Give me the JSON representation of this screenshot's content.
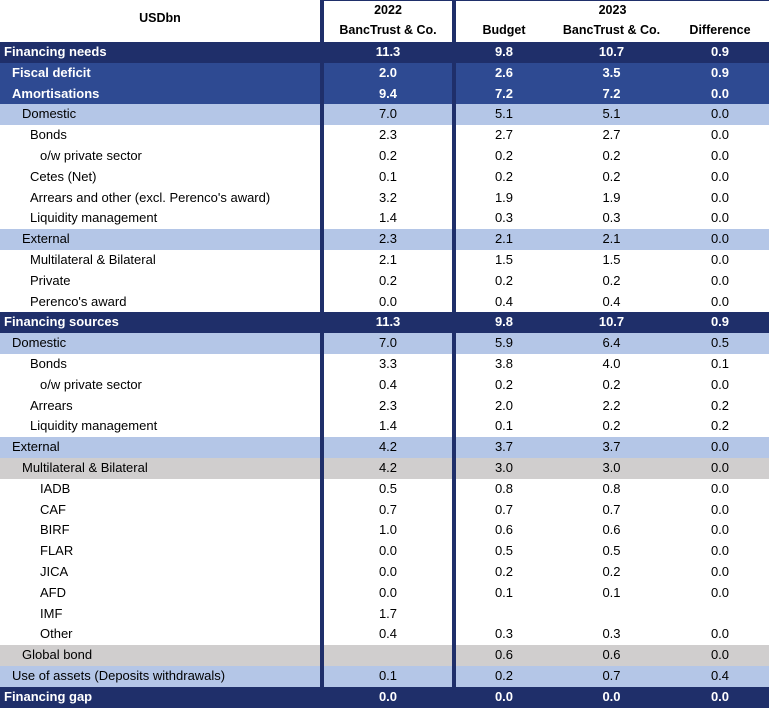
{
  "header": {
    "unit": "USDbn",
    "year_2022": "2022",
    "col_2022": "BancTrust & Co.",
    "year_2023": "2023",
    "col_budget": "Budget",
    "col_2023": "BancTrust & Co.",
    "col_diff": "Difference"
  },
  "rows": [
    {
      "label": "Financing needs",
      "v1": "11.3",
      "v2": "9.8",
      "v3": "10.7",
      "v4": "0.9",
      "style": "dark",
      "indent": 0
    },
    {
      "label": "Fiscal deficit",
      "v1": "2.0",
      "v2": "2.6",
      "v3": "3.5",
      "v4": "0.9",
      "style": "mid",
      "indent": 1
    },
    {
      "label": "Amortisations",
      "v1": "9.4",
      "v2": "7.2",
      "v3": "7.2",
      "v4": "0.0",
      "style": "mid",
      "indent": 1
    },
    {
      "label": "Domestic",
      "v1": "7.0",
      "v2": "5.1",
      "v3": "5.1",
      "v4": "0.0",
      "style": "light",
      "indent": 2
    },
    {
      "label": "Bonds",
      "v1": "2.3",
      "v2": "2.7",
      "v3": "2.7",
      "v4": "0.0",
      "style": "white",
      "indent": 3
    },
    {
      "label": "o/w private sector",
      "v1": "0.2",
      "v2": "0.2",
      "v3": "0.2",
      "v4": "0.0",
      "style": "white",
      "indent": 4
    },
    {
      "label": "Cetes (Net)",
      "v1": "0.1",
      "v2": "0.2",
      "v3": "0.2",
      "v4": "0.0",
      "style": "white",
      "indent": 3
    },
    {
      "label": "Arrears and other (excl. Perenco's award)",
      "v1": "3.2",
      "v2": "1.9",
      "v3": "1.9",
      "v4": "0.0",
      "style": "white",
      "indent": 3
    },
    {
      "label": "Liquidity management",
      "v1": "1.4",
      "v2": "0.3",
      "v3": "0.3",
      "v4": "0.0",
      "style": "white",
      "indent": 3
    },
    {
      "label": "External",
      "v1": "2.3",
      "v2": "2.1",
      "v3": "2.1",
      "v4": "0.0",
      "style": "light",
      "indent": 2
    },
    {
      "label": "Multilateral & Bilateral",
      "v1": "2.1",
      "v2": "1.5",
      "v3": "1.5",
      "v4": "0.0",
      "style": "white",
      "indent": 3
    },
    {
      "label": "Private",
      "v1": "0.2",
      "v2": "0.2",
      "v3": "0.2",
      "v4": "0.0",
      "style": "white",
      "indent": 3
    },
    {
      "label": "Perenco's award",
      "v1": "0.0",
      "v2": "0.4",
      "v3": "0.4",
      "v4": "0.0",
      "style": "white",
      "indent": 3
    },
    {
      "label": "Financing sources",
      "v1": "11.3",
      "v2": "9.8",
      "v3": "10.7",
      "v4": "0.9",
      "style": "dark",
      "indent": 0
    },
    {
      "label": "Domestic",
      "v1": "7.0",
      "v2": "5.9",
      "v3": "6.4",
      "v4": "0.5",
      "style": "light",
      "indent": 1
    },
    {
      "label": "Bonds",
      "v1": "3.3",
      "v2": "3.8",
      "v3": "4.0",
      "v4": "0.1",
      "style": "white",
      "indent": 3
    },
    {
      "label": "o/w private sector",
      "v1": "0.4",
      "v2": "0.2",
      "v3": "0.2",
      "v4": "0.0",
      "style": "white",
      "indent": 4
    },
    {
      "label": "Arrears",
      "v1": "2.3",
      "v2": "2.0",
      "v3": "2.2",
      "v4": "0.2",
      "style": "white",
      "indent": 3
    },
    {
      "label": "Liquidity management",
      "v1": "1.4",
      "v2": "0.1",
      "v3": "0.2",
      "v4": "0.2",
      "style": "white",
      "indent": 3
    },
    {
      "label": "External",
      "v1": "4.2",
      "v2": "3.7",
      "v3": "3.7",
      "v4": "0.0",
      "style": "light",
      "indent": 1
    },
    {
      "label": "Multilateral & Bilateral",
      "v1": "4.2",
      "v2": "3.0",
      "v3": "3.0",
      "v4": "0.0",
      "style": "grey",
      "indent": 2
    },
    {
      "label": "IADB",
      "v1": "0.5",
      "v2": "0.8",
      "v3": "0.8",
      "v4": "0.0",
      "style": "white",
      "indent": 5
    },
    {
      "label": "CAF",
      "v1": "0.7",
      "v2": "0.7",
      "v3": "0.7",
      "v4": "0.0",
      "style": "white",
      "indent": 5
    },
    {
      "label": "BIRF",
      "v1": "1.0",
      "v2": "0.6",
      "v3": "0.6",
      "v4": "0.0",
      "style": "white",
      "indent": 5
    },
    {
      "label": "FLAR",
      "v1": "0.0",
      "v2": "0.5",
      "v3": "0.5",
      "v4": "0.0",
      "style": "white",
      "indent": 5
    },
    {
      "label": "JICA",
      "v1": "0.0",
      "v2": "0.2",
      "v3": "0.2",
      "v4": "0.0",
      "style": "white",
      "indent": 5
    },
    {
      "label": "AFD",
      "v1": "0.0",
      "v2": "0.1",
      "v3": "0.1",
      "v4": "0.0",
      "style": "white",
      "indent": 5
    },
    {
      "label": "IMF",
      "v1": "1.7",
      "v2": "",
      "v3": "",
      "v4": "",
      "style": "white",
      "indent": 5
    },
    {
      "label": "Other",
      "v1": "0.4",
      "v2": "0.3",
      "v3": "0.3",
      "v4": "0.0",
      "style": "white",
      "indent": 5
    },
    {
      "label": "Global bond",
      "v1": "",
      "v2": "0.6",
      "v3": "0.6",
      "v4": "0.0",
      "style": "grey",
      "indent": 2
    },
    {
      "label": "Use of assets (Deposits withdrawals)",
      "v1": "0.1",
      "v2": "0.2",
      "v3": "0.7",
      "v4": "0.4",
      "style": "light",
      "indent": 1
    },
    {
      "label": "Financing gap",
      "v1": "0.0",
      "v2": "0.0",
      "v3": "0.0",
      "v4": "0.0",
      "style": "dark",
      "indent": 0
    }
  ]
}
